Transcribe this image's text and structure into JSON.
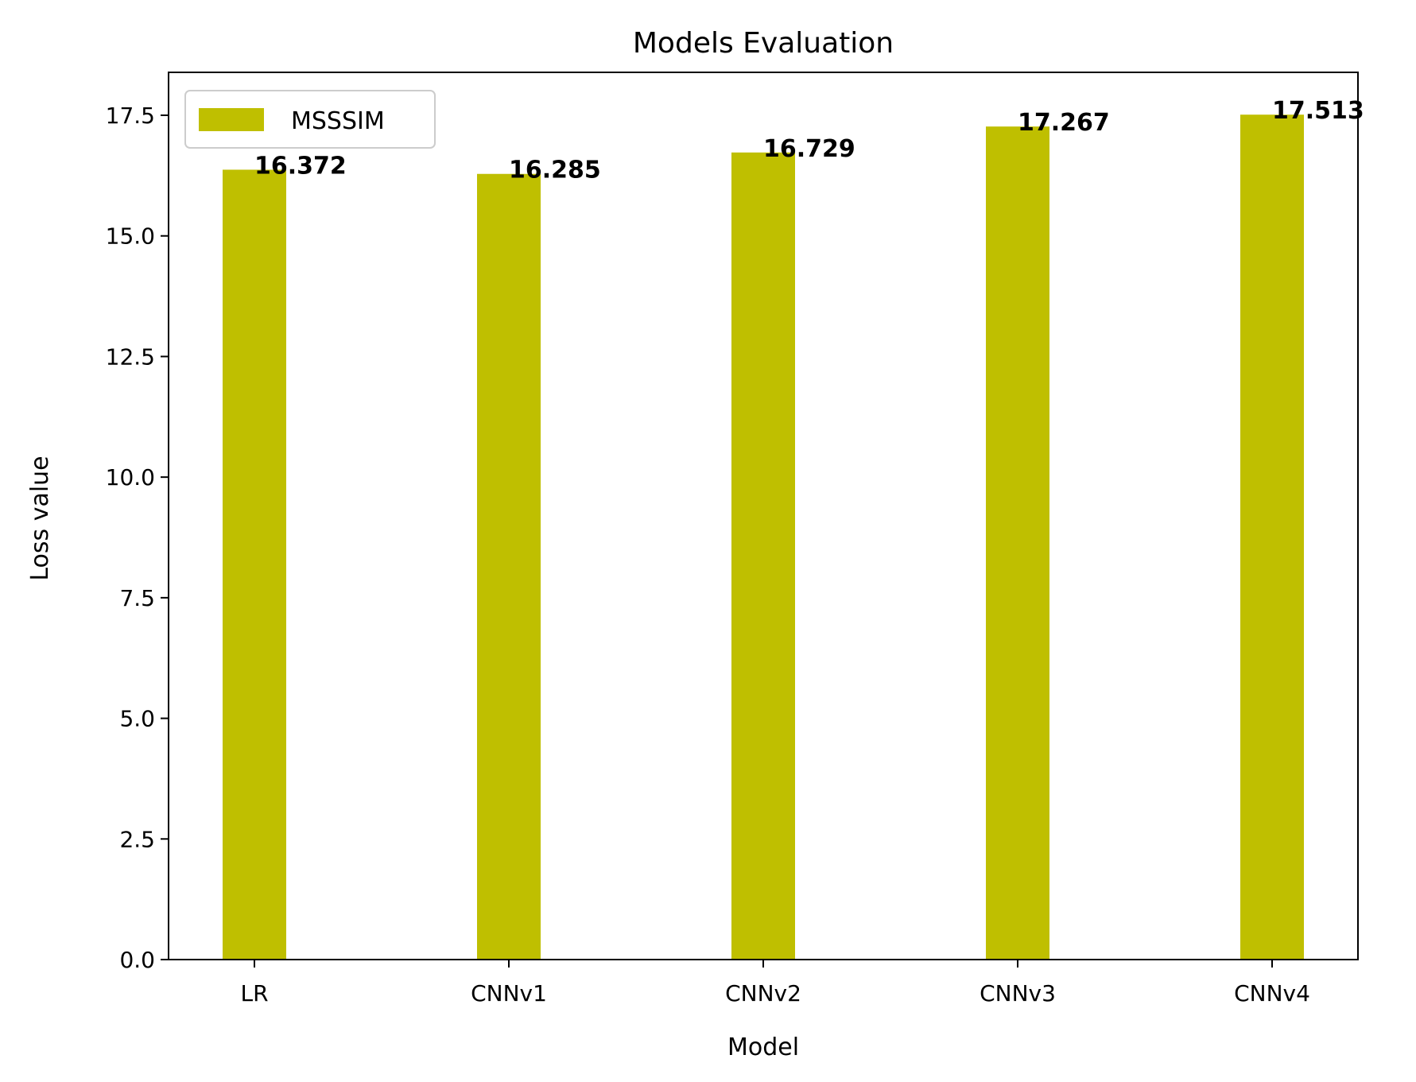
{
  "chart_data": {
    "type": "bar",
    "title": "Models Evaluation",
    "xlabel": "Model",
    "ylabel": "Loss value",
    "categories": [
      "LR",
      "CNNv1",
      "CNNv2",
      "CNNv3",
      "CNNv4"
    ],
    "series": [
      {
        "name": "MSSSIM",
        "values": [
          16.372,
          16.285,
          16.729,
          17.267,
          17.513
        ],
        "color": "#bfbf00"
      }
    ],
    "data_labels": [
      "16.372",
      "16.285",
      "16.729",
      "17.267",
      "17.513"
    ],
    "ylim": [
      0,
      18.39
    ],
    "yticks": [
      0.0,
      2.5,
      5.0,
      7.5,
      10.0,
      12.5,
      15.0,
      17.5
    ],
    "ytick_labels": [
      "0.0",
      "2.5",
      "5.0",
      "7.5",
      "10.0",
      "12.5",
      "15.0",
      "17.5"
    ],
    "grid": false,
    "legend_position": "upper left"
  }
}
